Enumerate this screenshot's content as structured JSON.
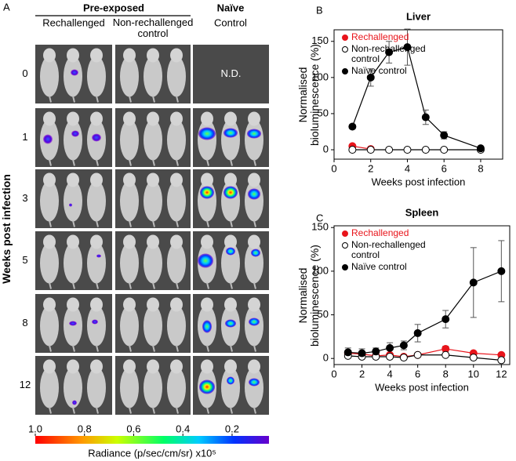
{
  "panel_a": {
    "letter": "A",
    "group_header": "Pre-exposed",
    "naive_header": "Naïve",
    "columns": [
      "Rechallenged",
      "Non-rechallenged control",
      "Control"
    ],
    "row_axis_label": "Weeks post infection",
    "rows": [
      0,
      1,
      3,
      5,
      8,
      12
    ],
    "not_done": "N.D.",
    "colorbar": {
      "label": "Radiance (p/sec/cm/sr) x10⁵",
      "clim": [
        1.0,
        0.05
      ],
      "ticks": [
        {
          "value": 1,
          "label": "1.0"
        },
        {
          "value": 0.8,
          "label": "0.8"
        },
        {
          "value": 0.6,
          "label": "0.6"
        },
        {
          "value": 0.4,
          "label": "0.4"
        },
        {
          "value": 0.2,
          "label": "0.2"
        }
      ]
    }
  },
  "chart_data": [
    {
      "type": "line",
      "panel": "B",
      "title": "Liver",
      "xlabel": "Weeks post infection",
      "ylabel": "Normalised bioluminescence (%)",
      "xlim": [
        0,
        9.2
      ],
      "ylim": [
        -13,
        166
      ],
      "xticks": [
        0,
        2,
        4,
        6,
        8
      ],
      "yticks": [
        0,
        50,
        100,
        150
      ],
      "legend": "upper left",
      "series": [
        {
          "name": "Rechallenged",
          "color": "#e8141b",
          "edge": "#e8141b",
          "line_color": "#e8141b",
          "label_color": "#e8141b",
          "x": [
            1,
            2
          ],
          "values": [
            5,
            1
          ],
          "errors": [
            2,
            1
          ]
        },
        {
          "name": "Non-rechallenged control",
          "color": "#ffffff",
          "edge": "#000000",
          "line_color": "#000000",
          "label_color": "#000000",
          "x": [
            1,
            2,
            3,
            4,
            5,
            6,
            8
          ],
          "values": [
            0,
            0,
            0,
            0,
            0,
            0,
            0
          ],
          "errors": [
            1,
            1,
            1,
            1,
            1,
            1,
            1
          ]
        },
        {
          "name": "Naïve control",
          "color": "#000000",
          "edge": "#000000",
          "line_color": "#000000",
          "label_color": "#000000",
          "x": [
            1,
            2,
            3,
            4,
            5,
            6,
            8
          ],
          "values": [
            32,
            100,
            135,
            142,
            45,
            20,
            2
          ],
          "errors": [
            3,
            12,
            15,
            25,
            10,
            5,
            1
          ]
        }
      ]
    },
    {
      "type": "line",
      "panel": "C",
      "title": "Spleen",
      "xlabel": "Weeks post infection",
      "ylabel": "Normalised bioluminescence (%)",
      "xlim": [
        0,
        12.6
      ],
      "ylim": [
        -7,
        152
      ],
      "xticks": [
        0,
        2,
        4,
        6,
        8,
        10,
        12
      ],
      "yticks": [
        0,
        50,
        100,
        150
      ],
      "legend": "upper left",
      "series": [
        {
          "name": "Rechallenged",
          "color": "#e8141b",
          "edge": "#e8141b",
          "line_color": "#e8141b",
          "label_color": "#e8141b",
          "x": [
            1,
            2,
            3,
            4,
            5,
            6,
            8,
            10,
            12
          ],
          "values": [
            6,
            5,
            3,
            4,
            2,
            4,
            11,
            6,
            4
          ],
          "errors": [
            3,
            3,
            2,
            2,
            1,
            2,
            3,
            2,
            2
          ]
        },
        {
          "name": "Non-rechallenged control",
          "color": "#ffffff",
          "edge": "#000000",
          "line_color": "#000000",
          "label_color": "#000000",
          "x": [
            1,
            2,
            3,
            4,
            5,
            6,
            8,
            10,
            12
          ],
          "values": [
            3,
            2,
            2,
            2,
            1,
            4,
            4,
            1,
            -2
          ],
          "errors": [
            2,
            2,
            1,
            1,
            1,
            2,
            2,
            1,
            1
          ]
        },
        {
          "name": "Naïve control",
          "color": "#000000",
          "edge": "#000000",
          "line_color": "#000000",
          "label_color": "#000000",
          "x": [
            1,
            2,
            3,
            4,
            5,
            6,
            8,
            10,
            12
          ],
          "values": [
            7,
            6,
            8,
            12,
            15,
            29,
            45,
            87,
            100
          ],
          "errors": [
            5,
            5,
            4,
            6,
            5,
            10,
            10,
            40,
            35
          ]
        }
      ]
    }
  ]
}
